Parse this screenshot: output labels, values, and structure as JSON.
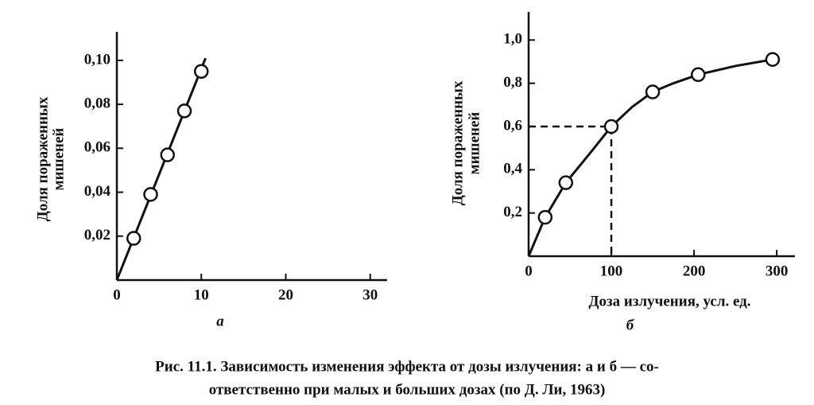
{
  "chart_data": [
    {
      "type": "line",
      "label": "а",
      "ylabel": [
        "Доля пораженных",
        "мишеней"
      ],
      "xlim": [
        0,
        32
      ],
      "ylim": [
        0,
        0.113
      ],
      "xticks": [
        0,
        10,
        20,
        30
      ],
      "yticks": [
        {
          "value": 0.02,
          "label": "0,02"
        },
        {
          "value": 0.04,
          "label": "0,04"
        },
        {
          "value": 0.06,
          "label": "0,06"
        },
        {
          "value": 0.08,
          "label": "0,08"
        },
        {
          "value": 0.1,
          "label": "0,10"
        }
      ],
      "color": "#111111",
      "series": [
        {
          "marker": "none",
          "x": [
            0,
            10.5
          ],
          "values": [
            0,
            0.101
          ]
        },
        {
          "marker": "circle",
          "x": [
            2,
            4,
            6,
            8,
            10
          ],
          "values": [
            0.019,
            0.039,
            0.057,
            0.077,
            0.095
          ]
        }
      ]
    },
    {
      "type": "line",
      "label": "б",
      "xlabel": "Доза излучения, усл. ед.",
      "ylabel": [
        "Доля пораженных",
        "мишеней"
      ],
      "xlim": [
        0,
        322
      ],
      "ylim": [
        0,
        1.13
      ],
      "xticks": [
        0,
        100,
        200,
        300
      ],
      "yticks": [
        {
          "value": 0.2,
          "label": "0,2"
        },
        {
          "value": 0.4,
          "label": "0,4"
        },
        {
          "value": 0.6,
          "label": "0,6"
        },
        {
          "value": 0.8,
          "label": "0,8"
        },
        {
          "value": 1.0,
          "label": "1,0"
        }
      ],
      "guide": {
        "x": 100,
        "y": 0.6
      },
      "color": "#111111",
      "series": [
        {
          "marker": "none",
          "x": [
            0,
            20,
            45,
            75,
            100,
            125,
            150,
            175,
            205,
            250,
            295
          ],
          "values": [
            0,
            0.18,
            0.34,
            0.48,
            0.6,
            0.69,
            0.76,
            0.8,
            0.84,
            0.88,
            0.91
          ]
        },
        {
          "marker": "circle",
          "x": [
            20,
            45,
            100,
            150,
            205,
            295
          ],
          "values": [
            0.18,
            0.34,
            0.6,
            0.76,
            0.84,
            0.91
          ]
        }
      ]
    }
  ],
  "caption": [
    "Рис. 11.1. Зависимость изменения эффекта от дозы излучения: а и б — со-",
    "ответственно при малых и больших дозах (по Д. Ли, 1963)"
  ]
}
